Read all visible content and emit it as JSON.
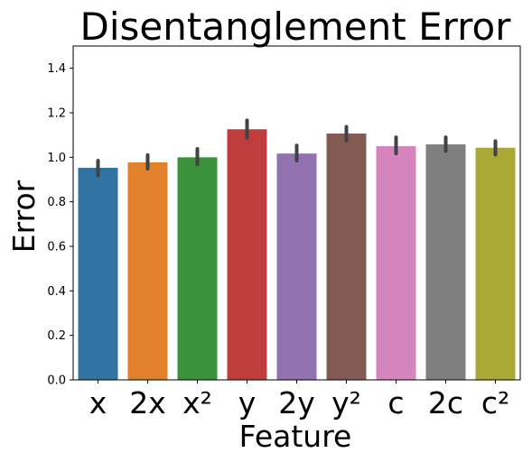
{
  "chart_data": {
    "type": "bar",
    "title": "Disentanglement Error",
    "xlabel": "Feature",
    "ylabel": "Error",
    "categories": [
      "x",
      "2x",
      "x²",
      "y",
      "2y",
      "y²",
      "c",
      "2c",
      "c²"
    ],
    "values": [
      0.953,
      0.977,
      1.0,
      1.126,
      1.017,
      1.107,
      1.05,
      1.058,
      1.043
    ],
    "error_low": [
      0.918,
      0.949,
      0.968,
      1.088,
      0.985,
      1.076,
      1.017,
      1.028,
      1.012
    ],
    "error_high": [
      0.985,
      1.01,
      1.038,
      1.166,
      1.053,
      1.137,
      1.09,
      1.09,
      1.073
    ],
    "colors": [
      "#3274a1",
      "#e1812c",
      "#3a923a",
      "#c03d3e",
      "#9372b2",
      "#845b53",
      "#d684bd",
      "#7f7f7f",
      "#a9aa35"
    ],
    "ylim": [
      0,
      1.5
    ],
    "yticks": [
      "0.0",
      "0.2",
      "0.4",
      "0.6",
      "0.8",
      "1.0",
      "1.2",
      "1.4"
    ],
    "grid": false,
    "legend": "none"
  }
}
